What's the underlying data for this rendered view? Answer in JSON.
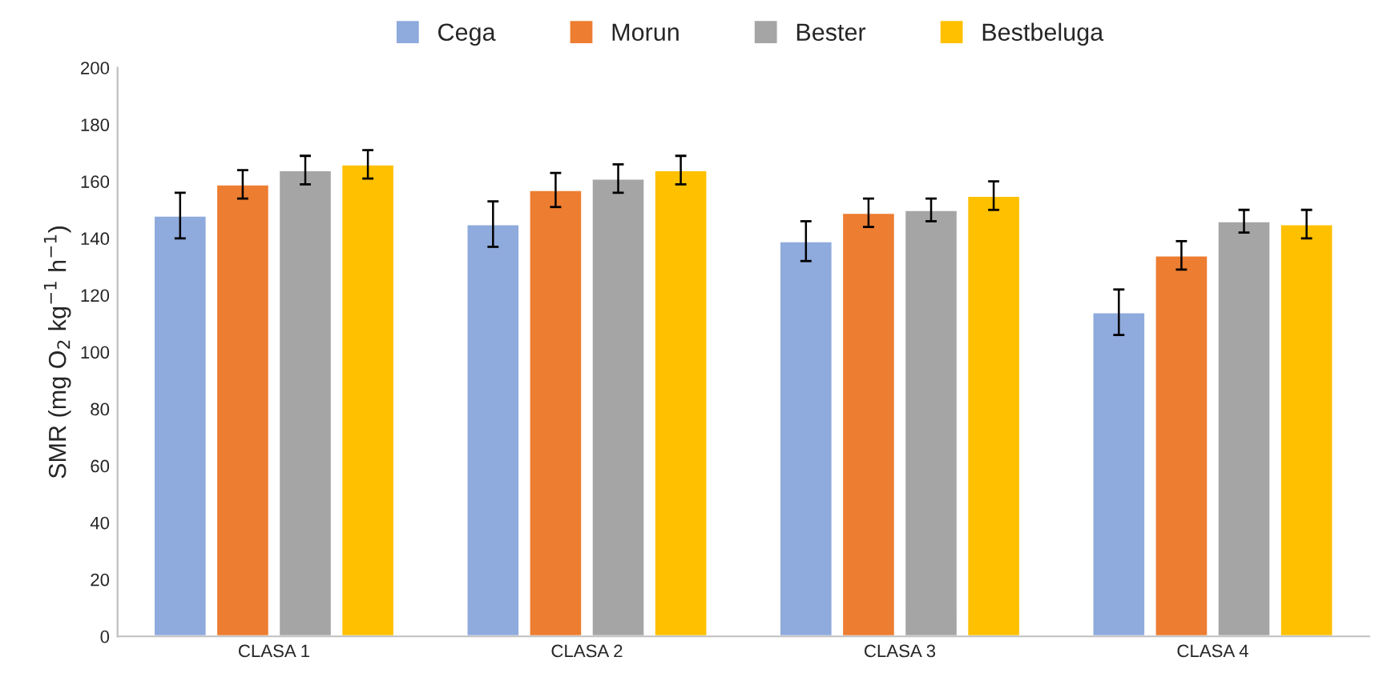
{
  "chart_data": {
    "type": "bar",
    "ylabel": "SMR (mg O$_{2}$ kg$^{−1}$ h$^{−1}$)",
    "categories": [
      "CLASA 1",
      "CLASA 2",
      "CLASA 3",
      "CLASA 4"
    ],
    "series": [
      {
        "name": "Cega",
        "color": "#8faadc",
        "values": [
          148,
          145,
          139,
          114
        ],
        "errors": [
          8,
          8,
          7,
          8
        ]
      },
      {
        "name": "Morun",
        "color": "#ed7d31",
        "values": [
          159,
          157,
          149,
          134
        ],
        "errors": [
          5,
          6,
          5,
          5
        ]
      },
      {
        "name": "Bester",
        "color": "#a5a5a5",
        "values": [
          164,
          161,
          150,
          146
        ],
        "errors": [
          5,
          5,
          4,
          4
        ]
      },
      {
        "name": "Bestbeluga",
        "color": "#ffc000",
        "values": [
          166,
          164,
          155,
          145
        ],
        "errors": [
          5,
          5,
          5,
          5
        ]
      }
    ],
    "ylim": [
      0,
      200
    ],
    "yticks": [
      0,
      20,
      40,
      60,
      80,
      100,
      120,
      140,
      160,
      180,
      200
    ],
    "grid": false,
    "legend": "top",
    "marker": "square"
  }
}
